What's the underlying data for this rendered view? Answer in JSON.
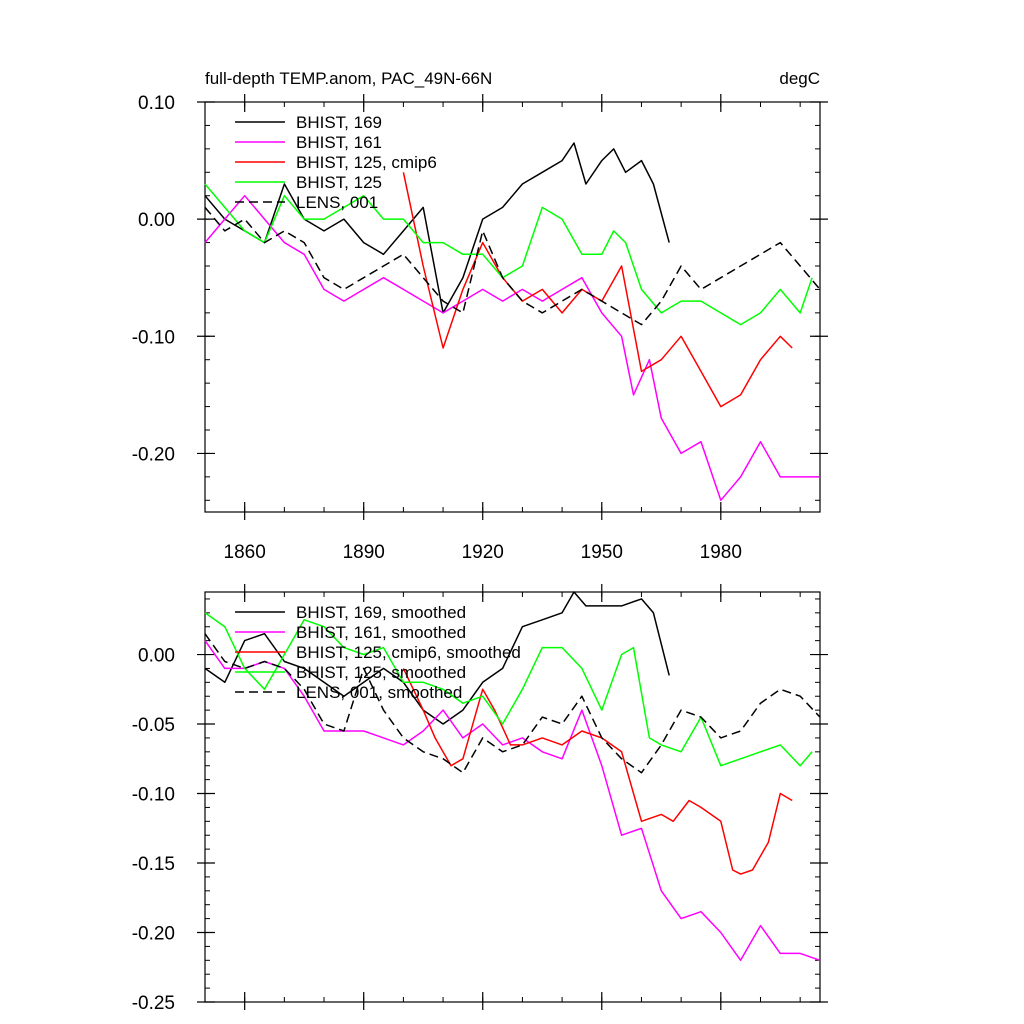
{
  "chart_data": [
    {
      "type": "line",
      "title": "full-depth TEMP.anom, PAC_49N-66N",
      "units": "degC",
      "xlim": [
        1850,
        2005
      ],
      "ylim": [
        -0.25,
        0.1
      ],
      "x_ticks": [
        1860,
        1890,
        1920,
        1950,
        1980
      ],
      "y_ticks": [
        0.1,
        0.0,
        -0.1,
        -0.2
      ],
      "y_tick_labels": [
        "0.10",
        "0.00",
        "-0.10",
        "-0.20"
      ],
      "legend_position": "top-left",
      "series": [
        {
          "name": "BHIST, 169",
          "color": "#000000",
          "dash": "solid",
          "x": [
            1850,
            1855,
            1860,
            1865,
            1870,
            1875,
            1880,
            1885,
            1890,
            1895,
            1900,
            1905,
            1910,
            1915,
            1920,
            1925,
            1930,
            1935,
            1940,
            1943,
            1946,
            1950,
            1953,
            1956,
            1960,
            1963,
            1967
          ],
          "y": [
            0.02,
            0.0,
            -0.01,
            -0.02,
            0.03,
            0.0,
            -0.01,
            0.0,
            -0.02,
            -0.03,
            -0.01,
            0.01,
            -0.08,
            -0.05,
            0.0,
            0.01,
            0.03,
            0.04,
            0.05,
            0.065,
            0.03,
            0.05,
            0.06,
            0.04,
            0.05,
            0.03,
            -0.02
          ]
        },
        {
          "name": "BHIST, 161",
          "color": "#ff00ff",
          "dash": "solid",
          "x": [
            1850,
            1855,
            1860,
            1865,
            1870,
            1875,
            1880,
            1885,
            1890,
            1895,
            1900,
            1905,
            1910,
            1915,
            1920,
            1925,
            1930,
            1935,
            1940,
            1945,
            1950,
            1955,
            1958,
            1962,
            1965,
            1970,
            1975,
            1980,
            1985,
            1990,
            1995,
            2000,
            2005
          ],
          "y": [
            -0.02,
            0.0,
            0.02,
            0.0,
            -0.02,
            -0.03,
            -0.06,
            -0.07,
            -0.06,
            -0.05,
            -0.06,
            -0.07,
            -0.08,
            -0.07,
            -0.06,
            -0.07,
            -0.06,
            -0.07,
            -0.06,
            -0.05,
            -0.08,
            -0.1,
            -0.15,
            -0.12,
            -0.17,
            -0.2,
            -0.19,
            -0.24,
            -0.22,
            -0.19,
            -0.22,
            -0.22,
            -0.22
          ]
        },
        {
          "name": "BHIST, 125, cmip6",
          "color": "#ff0000",
          "dash": "solid",
          "x": [
            1900,
            1905,
            1910,
            1915,
            1920,
            1925,
            1930,
            1935,
            1940,
            1945,
            1950,
            1955,
            1960,
            1965,
            1970,
            1975,
            1980,
            1985,
            1990,
            1995,
            1998
          ],
          "y": [
            0.04,
            -0.04,
            -0.11,
            -0.06,
            -0.02,
            -0.05,
            -0.07,
            -0.06,
            -0.08,
            -0.06,
            -0.07,
            -0.04,
            -0.13,
            -0.12,
            -0.1,
            -0.13,
            -0.16,
            -0.15,
            -0.12,
            -0.1,
            -0.11
          ]
        },
        {
          "name": "BHIST, 125",
          "color": "#00ff00",
          "dash": "solid",
          "x": [
            1850,
            1855,
            1860,
            1865,
            1870,
            1875,
            1880,
            1885,
            1890,
            1895,
            1900,
            1905,
            1910,
            1915,
            1920,
            1925,
            1930,
            1935,
            1940,
            1945,
            1950,
            1953,
            1956,
            1960,
            1965,
            1970,
            1975,
            1980,
            1985,
            1990,
            1995,
            2000,
            2003
          ],
          "y": [
            0.03,
            0.01,
            -0.01,
            -0.02,
            0.02,
            0.0,
            0.0,
            0.01,
            0.02,
            0.0,
            0.0,
            -0.02,
            -0.02,
            -0.03,
            -0.03,
            -0.05,
            -0.04,
            0.01,
            0.0,
            -0.03,
            -0.03,
            -0.01,
            -0.02,
            -0.06,
            -0.08,
            -0.07,
            -0.07,
            -0.08,
            -0.09,
            -0.08,
            -0.06,
            -0.08,
            -0.05
          ]
        },
        {
          "name": "LENS, 001",
          "color": "#000000",
          "dash": "dashed",
          "x": [
            1850,
            1855,
            1860,
            1865,
            1870,
            1875,
            1880,
            1885,
            1890,
            1895,
            1900,
            1905,
            1910,
            1915,
            1920,
            1925,
            1930,
            1935,
            1940,
            1945,
            1950,
            1955,
            1960,
            1965,
            1970,
            1975,
            1980,
            1985,
            1990,
            1995,
            2000,
            2005
          ],
          "y": [
            0.01,
            -0.01,
            0.0,
            -0.02,
            -0.01,
            -0.02,
            -0.05,
            -0.06,
            -0.05,
            -0.04,
            -0.03,
            -0.05,
            -0.07,
            -0.08,
            -0.01,
            -0.05,
            -0.07,
            -0.08,
            -0.07,
            -0.06,
            -0.07,
            -0.08,
            -0.09,
            -0.07,
            -0.04,
            -0.06,
            -0.05,
            -0.04,
            -0.03,
            -0.02,
            -0.04,
            -0.06
          ]
        }
      ]
    },
    {
      "type": "line",
      "title": "",
      "xlim": [
        1850,
        2005
      ],
      "ylim": [
        -0.25,
        0.045
      ],
      "y_ticks": [
        0.0,
        -0.05,
        -0.1,
        -0.15,
        -0.2,
        -0.25
      ],
      "y_tick_labels": [
        "0.00",
        "-0.05",
        "-0.10",
        "-0.15",
        "-0.20",
        "-0.25"
      ],
      "legend_position": "top-left",
      "series": [
        {
          "name": "BHIST, 169, smoothed",
          "color": "#000000",
          "dash": "solid",
          "x": [
            1850,
            1855,
            1860,
            1865,
            1870,
            1875,
            1880,
            1885,
            1890,
            1895,
            1900,
            1905,
            1910,
            1915,
            1920,
            1925,
            1930,
            1935,
            1940,
            1943,
            1946,
            1950,
            1955,
            1960,
            1963,
            1967
          ],
          "y": [
            -0.01,
            -0.02,
            0.01,
            0.015,
            -0.005,
            -0.01,
            -0.02,
            -0.03,
            -0.02,
            -0.01,
            -0.02,
            -0.04,
            -0.05,
            -0.04,
            -0.02,
            -0.01,
            0.02,
            0.025,
            0.03,
            0.045,
            0.035,
            0.035,
            0.035,
            0.04,
            0.03,
            -0.015
          ]
        },
        {
          "name": "BHIST, 161, smoothed",
          "color": "#ff00ff",
          "dash": "solid",
          "x": [
            1850,
            1855,
            1860,
            1865,
            1870,
            1875,
            1880,
            1885,
            1890,
            1895,
            1900,
            1905,
            1910,
            1915,
            1920,
            1925,
            1930,
            1935,
            1940,
            1945,
            1950,
            1955,
            1960,
            1965,
            1970,
            1975,
            1980,
            1985,
            1990,
            1995,
            2000,
            2005
          ],
          "y": [
            0.01,
            -0.01,
            -0.01,
            -0.005,
            -0.01,
            -0.03,
            -0.055,
            -0.055,
            -0.055,
            -0.06,
            -0.065,
            -0.055,
            -0.04,
            -0.06,
            -0.05,
            -0.065,
            -0.06,
            -0.07,
            -0.075,
            -0.04,
            -0.08,
            -0.13,
            -0.125,
            -0.17,
            -0.19,
            -0.185,
            -0.2,
            -0.22,
            -0.195,
            -0.215,
            -0.215,
            -0.22
          ]
        },
        {
          "name": "BHIST, 125, cmip6, smoothed",
          "color": "#ff0000",
          "dash": "solid",
          "x": [
            1900,
            1905,
            1908,
            1912,
            1915,
            1920,
            1923,
            1927,
            1930,
            1935,
            1940,
            1945,
            1950,
            1955,
            1960,
            1965,
            1968,
            1972,
            1975,
            1980,
            1983,
            1985,
            1988,
            1992,
            1995,
            1998
          ],
          "y": [
            -0.01,
            -0.04,
            -0.06,
            -0.08,
            -0.075,
            -0.025,
            -0.04,
            -0.065,
            -0.065,
            -0.06,
            -0.065,
            -0.055,
            -0.06,
            -0.07,
            -0.12,
            -0.115,
            -0.12,
            -0.105,
            -0.11,
            -0.12,
            -0.155,
            -0.158,
            -0.155,
            -0.135,
            -0.1,
            -0.105
          ]
        },
        {
          "name": "BHIST, 125, smoothed",
          "color": "#00ff00",
          "dash": "solid",
          "x": [
            1850,
            1855,
            1860,
            1865,
            1870,
            1875,
            1880,
            1885,
            1890,
            1895,
            1900,
            1905,
            1910,
            1915,
            1920,
            1925,
            1930,
            1935,
            1940,
            1945,
            1950,
            1955,
            1958,
            1962,
            1965,
            1970,
            1975,
            1980,
            1985,
            1990,
            1995,
            2000,
            2003
          ],
          "y": [
            0.03,
            0.02,
            -0.01,
            -0.025,
            0.0,
            0.025,
            0.02,
            0.005,
            0.0,
            0.005,
            -0.02,
            -0.02,
            -0.025,
            -0.035,
            -0.03,
            -0.05,
            -0.025,
            0.005,
            0.005,
            -0.01,
            -0.04,
            0.0,
            0.005,
            -0.06,
            -0.065,
            -0.07,
            -0.045,
            -0.08,
            -0.075,
            -0.07,
            -0.065,
            -0.08,
            -0.07
          ]
        },
        {
          "name": "LENS, 001, smoothed",
          "color": "#000000",
          "dash": "dashed",
          "x": [
            1850,
            1855,
            1860,
            1865,
            1870,
            1875,
            1880,
            1885,
            1890,
            1895,
            1900,
            1905,
            1910,
            1915,
            1920,
            1925,
            1930,
            1935,
            1940,
            1945,
            1950,
            1955,
            1960,
            1965,
            1970,
            1975,
            1980,
            1985,
            1990,
            1995,
            2000,
            2005
          ],
          "y": [
            0.015,
            -0.005,
            -0.01,
            -0.005,
            -0.01,
            -0.025,
            -0.05,
            -0.055,
            -0.01,
            -0.04,
            -0.06,
            -0.07,
            -0.075,
            -0.085,
            -0.06,
            -0.07,
            -0.065,
            -0.045,
            -0.05,
            -0.03,
            -0.06,
            -0.075,
            -0.085,
            -0.065,
            -0.04,
            -0.045,
            -0.06,
            -0.055,
            -0.035,
            -0.025,
            -0.03,
            -0.045
          ]
        }
      ]
    }
  ]
}
